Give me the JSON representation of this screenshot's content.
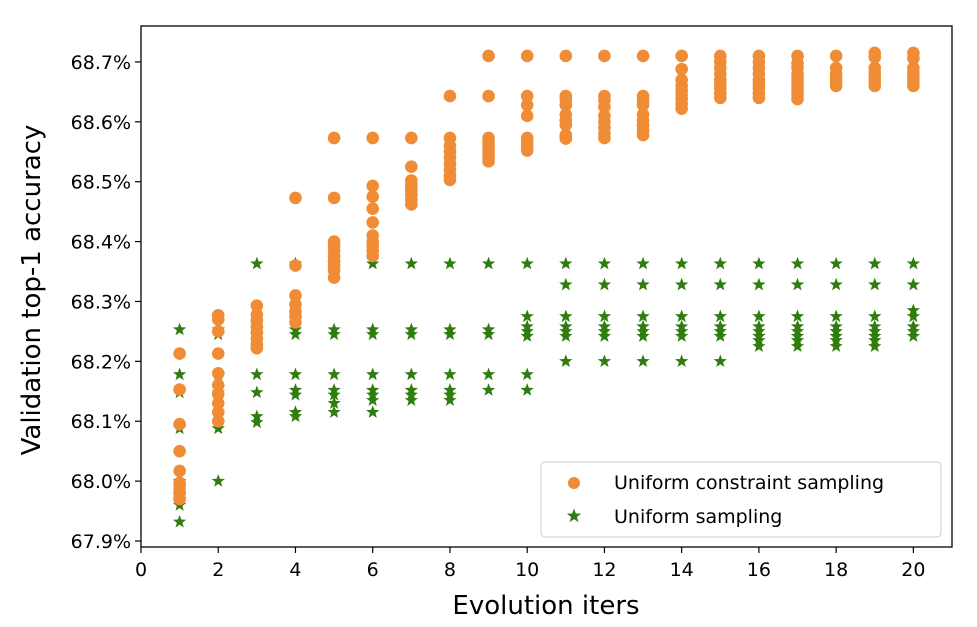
{
  "chart_data": {
    "type": "scatter",
    "xlabel": "Evolution iters",
    "ylabel": "Validation top-1 accuracy",
    "xlim": [
      0,
      21
    ],
    "ylim": [
      67.89,
      68.76
    ],
    "xticks": [
      0,
      2,
      4,
      6,
      8,
      10,
      12,
      14,
      16,
      18,
      20
    ],
    "yticks": [
      {
        "value": 67.9,
        "label": "67.9%"
      },
      {
        "value": 68.0,
        "label": "68.0%"
      },
      {
        "value": 68.1,
        "label": "68.1%"
      },
      {
        "value": 68.2,
        "label": "68.2%"
      },
      {
        "value": 68.3,
        "label": "68.3%"
      },
      {
        "value": 68.4,
        "label": "68.4%"
      },
      {
        "value": 68.5,
        "label": "68.5%"
      },
      {
        "value": 68.6,
        "label": "68.6%"
      },
      {
        "value": 68.7,
        "label": "68.7%"
      }
    ],
    "grid": false,
    "legend_position": "bottom-right",
    "series": [
      {
        "name": "Uniform constraint sampling",
        "marker": "circle",
        "color": "#f08c35",
        "points": [
          {
            "x": 1,
            "ys": [
              68.213,
              68.153,
              68.095,
              68.05,
              68.017,
              67.997,
              67.988,
              67.98,
              67.97
            ]
          },
          {
            "x": 2,
            "ys": [
              68.277,
              68.27,
              68.25,
              68.213,
              68.18,
              68.16,
              68.145,
              68.13,
              68.115,
              68.1
            ]
          },
          {
            "x": 3,
            "ys": [
              68.293,
              68.278,
              68.268,
              68.258,
              68.248,
              68.238,
              68.228,
              68.222
            ]
          },
          {
            "x": 4,
            "ys": [
              68.473,
              68.36,
              68.31,
              68.295,
              68.283,
              68.275,
              68.265
            ]
          },
          {
            "x": 5,
            "ys": [
              68.573,
              68.473,
              68.4,
              68.392,
              68.384,
              68.376,
              68.368,
              68.36,
              68.352,
              68.34
            ]
          },
          {
            "x": 6,
            "ys": [
              68.573,
              68.493,
              68.475,
              68.455,
              68.432,
              68.41,
              68.4,
              68.392,
              68.384,
              68.376
            ]
          },
          {
            "x": 7,
            "ys": [
              68.573,
              68.525,
              68.502,
              68.495,
              68.49,
              68.485,
              68.478,
              68.47,
              68.462
            ]
          },
          {
            "x": 8,
            "ys": [
              68.643,
              68.573,
              68.56,
              68.55,
              68.54,
              68.53,
              68.52,
              68.51,
              68.503
            ]
          },
          {
            "x": 9,
            "ys": [
              68.71,
              68.643,
              68.573,
              68.565,
              68.558,
              68.552,
              68.546,
              68.54,
              68.534
            ]
          },
          {
            "x": 10,
            "ys": [
              68.71,
              68.643,
              68.628,
              68.61,
              68.573,
              68.565,
              68.558,
              68.552
            ]
          },
          {
            "x": 11,
            "ys": [
              68.71,
              68.643,
              68.636,
              68.628,
              68.612,
              68.602,
              68.595,
              68.578,
              68.572
            ]
          },
          {
            "x": 12,
            "ys": [
              68.71,
              68.643,
              68.636,
              68.625,
              68.61,
              68.6,
              68.59,
              68.58,
              68.573
            ]
          },
          {
            "x": 13,
            "ys": [
              68.71,
              68.643,
              68.636,
              68.628,
              68.612,
              68.602,
              68.594,
              68.586,
              68.578
            ]
          },
          {
            "x": 14,
            "ys": [
              68.71,
              68.688,
              68.67,
              68.66,
              68.652,
              68.645,
              68.638,
              68.63,
              68.622
            ]
          },
          {
            "x": 15,
            "ys": [
              68.71,
              68.7,
              68.69,
              68.68,
              68.67,
              68.663,
              68.656,
              68.648,
              68.64
            ]
          },
          {
            "x": 16,
            "ys": [
              68.71,
              68.7,
              68.69,
              68.68,
              68.67,
              68.663,
              68.656,
              68.648,
              68.64
            ]
          },
          {
            "x": 17,
            "ys": [
              68.71,
              68.698,
              68.69,
              68.68,
              68.673,
              68.666,
              68.659,
              68.652,
              68.645,
              68.638
            ]
          },
          {
            "x": 18,
            "ys": [
              68.71,
              68.69,
              68.68,
              68.673,
              68.666,
              68.66
            ]
          },
          {
            "x": 19,
            "ys": [
              68.715,
              68.708,
              68.69,
              68.682,
              68.675,
              68.668,
              68.66
            ]
          },
          {
            "x": 20,
            "ys": [
              68.715,
              68.706,
              68.69,
              68.682,
              68.675,
              68.668,
              68.66
            ]
          }
        ]
      },
      {
        "name": "Uniform sampling",
        "marker": "star",
        "color": "#2f7d0f",
        "points": [
          {
            "x": 1,
            "ys": [
              68.253,
              68.178,
              68.148,
              68.088,
              68.0,
              67.99,
              67.98,
              67.97,
              67.96,
              67.932
            ]
          },
          {
            "x": 2,
            "ys": [
              68.253,
              68.245,
              68.178,
              68.148,
              68.098,
              68.088,
              68.0
            ]
          },
          {
            "x": 3,
            "ys": [
              68.363,
              68.253,
              68.245,
              68.178,
              68.148,
              68.108,
              68.098
            ]
          },
          {
            "x": 4,
            "ys": [
              68.363,
              68.253,
              68.245,
              68.178,
              68.152,
              68.144,
              68.115,
              68.108
            ]
          },
          {
            "x": 5,
            "ys": [
              68.363,
              68.253,
              68.245,
              68.178,
              68.152,
              68.144,
              68.13,
              68.115
            ]
          },
          {
            "x": 6,
            "ys": [
              68.363,
              68.253,
              68.245,
              68.178,
              68.152,
              68.144,
              68.135,
              68.115
            ]
          },
          {
            "x": 7,
            "ys": [
              68.363,
              68.253,
              68.245,
              68.178,
              68.152,
              68.144,
              68.135
            ]
          },
          {
            "x": 8,
            "ys": [
              68.363,
              68.253,
              68.245,
              68.178,
              68.152,
              68.144,
              68.135
            ]
          },
          {
            "x": 9,
            "ys": [
              68.363,
              68.253,
              68.245,
              68.178,
              68.152
            ]
          },
          {
            "x": 10,
            "ys": [
              68.363,
              68.275,
              68.258,
              68.25,
              68.242,
              68.178,
              68.152
            ]
          },
          {
            "x": 11,
            "ys": [
              68.363,
              68.328,
              68.275,
              68.258,
              68.25,
              68.242,
              68.2
            ]
          },
          {
            "x": 12,
            "ys": [
              68.363,
              68.328,
              68.275,
              68.258,
              68.25,
              68.242,
              68.2
            ]
          },
          {
            "x": 13,
            "ys": [
              68.363,
              68.328,
              68.275,
              68.258,
              68.25,
              68.242,
              68.2
            ]
          },
          {
            "x": 14,
            "ys": [
              68.363,
              68.328,
              68.275,
              68.258,
              68.25,
              68.242,
              68.2
            ]
          },
          {
            "x": 15,
            "ys": [
              68.363,
              68.328,
              68.275,
              68.258,
              68.25,
              68.242,
              68.2
            ]
          },
          {
            "x": 16,
            "ys": [
              68.363,
              68.328,
              68.275,
              68.258,
              68.25,
              68.242,
              68.235,
              68.225
            ]
          },
          {
            "x": 17,
            "ys": [
              68.363,
              68.328,
              68.275,
              68.258,
              68.25,
              68.242,
              68.235,
              68.225
            ]
          },
          {
            "x": 18,
            "ys": [
              68.363,
              68.328,
              68.275,
              68.258,
              68.25,
              68.242,
              68.235,
              68.225
            ]
          },
          {
            "x": 19,
            "ys": [
              68.363,
              68.328,
              68.275,
              68.258,
              68.25,
              68.242,
              68.235,
              68.225
            ]
          },
          {
            "x": 20,
            "ys": [
              68.363,
              68.328,
              68.285,
              68.275,
              68.258,
              68.25,
              68.242
            ]
          }
        ]
      }
    ]
  }
}
